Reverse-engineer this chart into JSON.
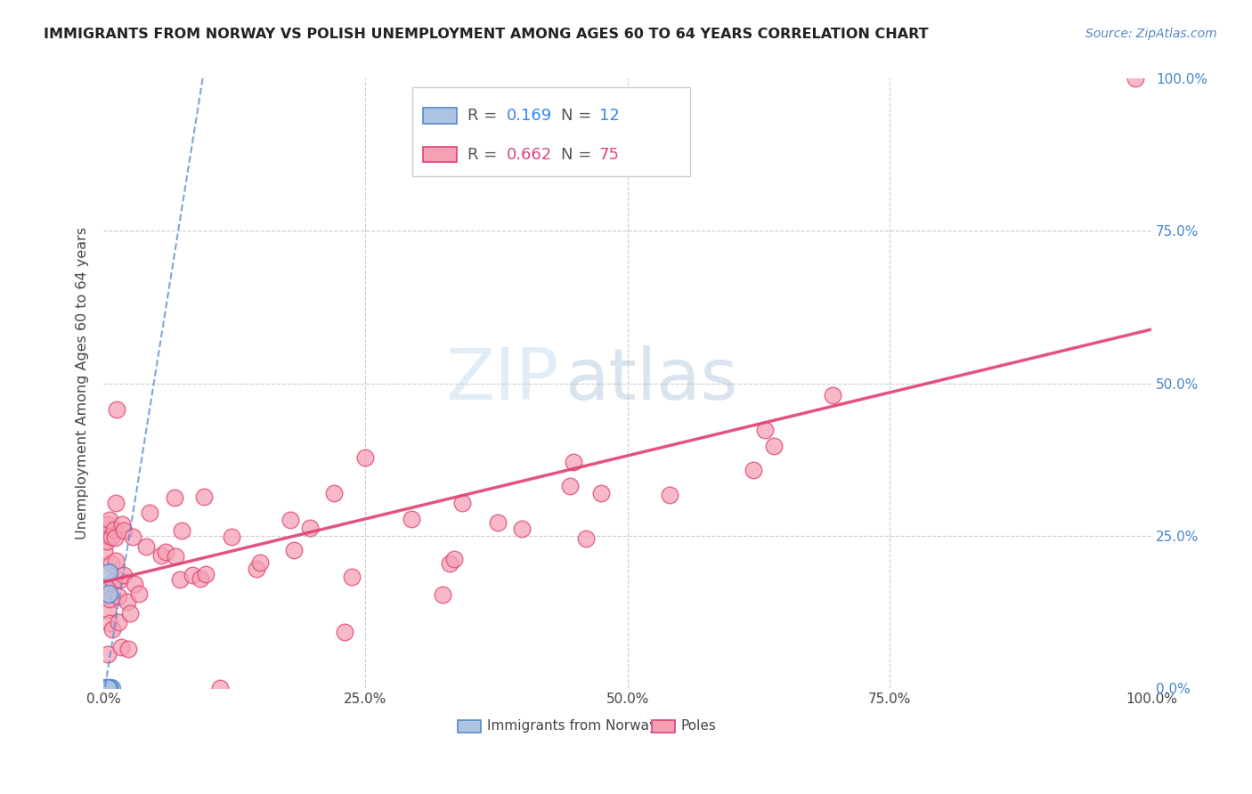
{
  "title": "IMMIGRANTS FROM NORWAY VS POLISH UNEMPLOYMENT AMONG AGES 60 TO 64 YEARS CORRELATION CHART",
  "source": "Source: ZipAtlas.com",
  "ylabel": "Unemployment Among Ages 60 to 64 years",
  "watermark_zip": "ZIP",
  "watermark_atlas": "atlas",
  "norway_R": 0.169,
  "norway_N": 12,
  "poles_R": 0.662,
  "poles_N": 75,
  "norway_color": "#aac4e2",
  "poles_color": "#f5a0b5",
  "norway_line_color": "#5588cc",
  "poles_line_color": "#e04070",
  "background_color": "#ffffff",
  "grid_color": "#cccccc",
  "right_tick_color": "#4488cc"
}
